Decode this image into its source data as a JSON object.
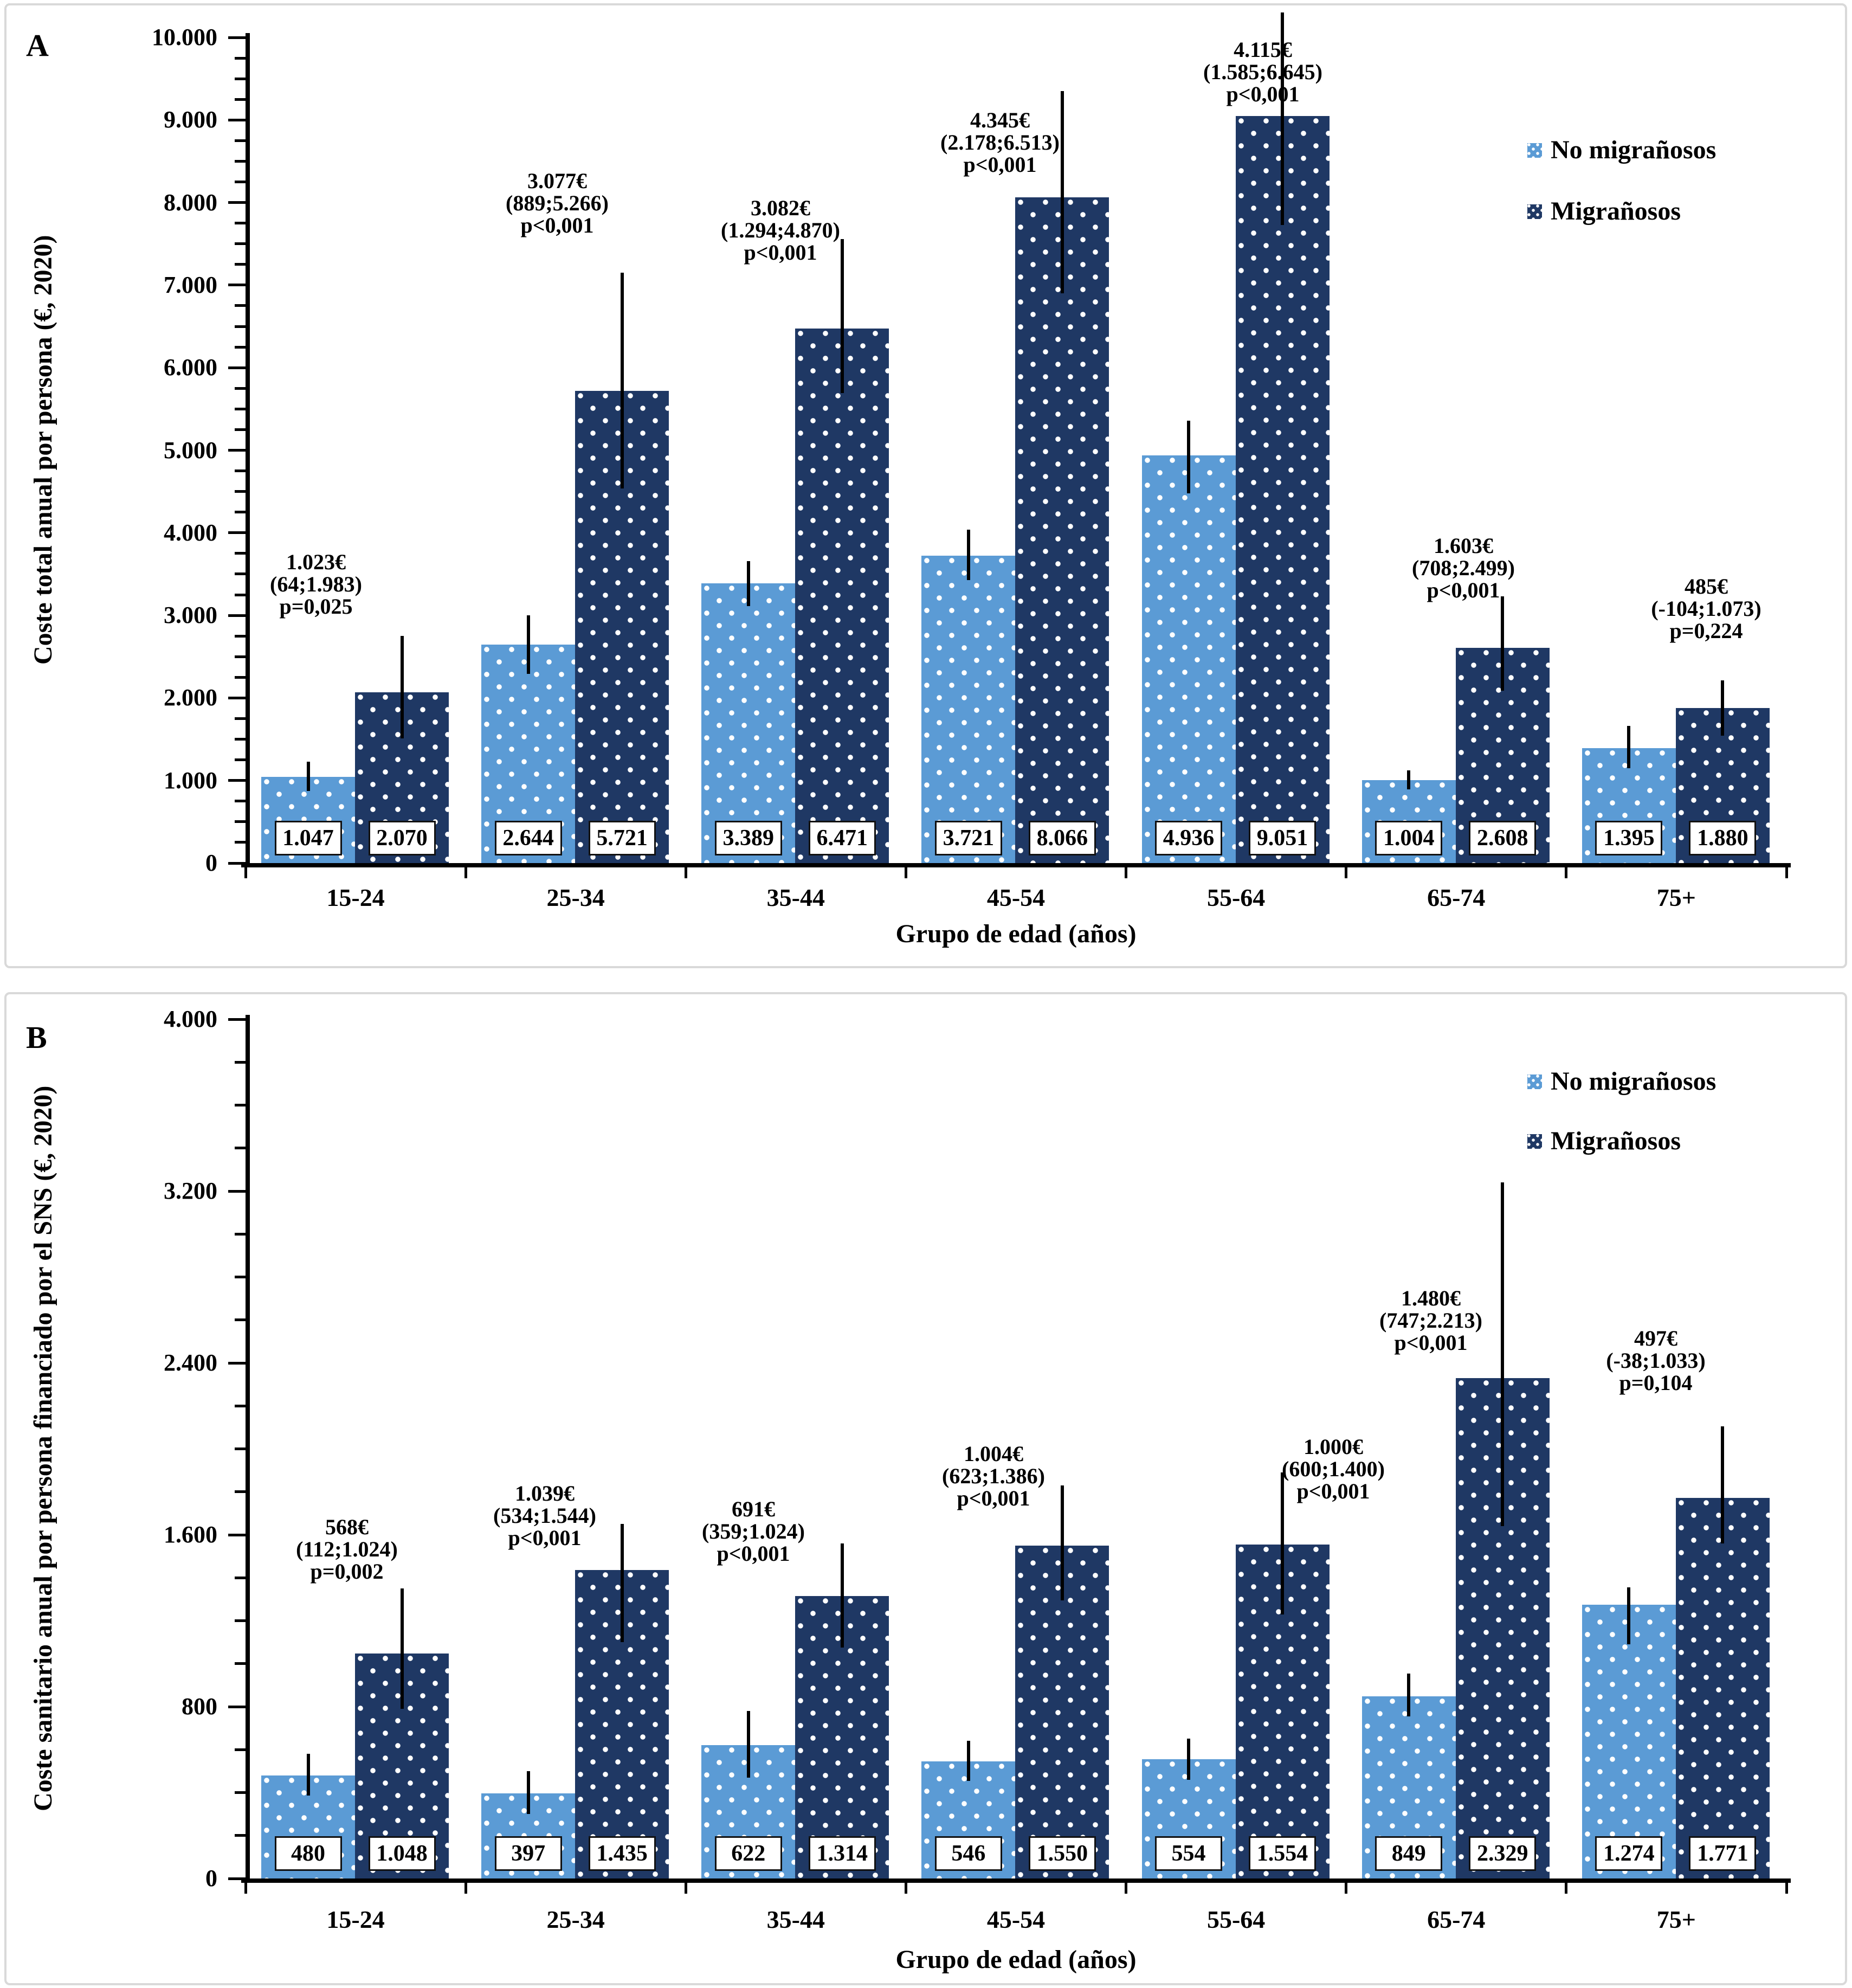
{
  "chart_data": [
    {
      "panel_label": "A",
      "type": "bar",
      "ylabel": "Coste total anual por persona (€, 2020)",
      "xlabel": "Grupo de edad (años)",
      "ylim": [
        0,
        10000
      ],
      "ytick_step": 1000,
      "ytick_minor_step": 250,
      "ytick_labels": [
        "0",
        "1.000",
        "2.000",
        "3.000",
        "4.000",
        "5.000",
        "6.000",
        "7.000",
        "8.000",
        "9.000",
        "10.000"
      ],
      "categories": [
        "15-24",
        "25-34",
        "35-44",
        "45-54",
        "55-64",
        "65-74",
        "75+"
      ],
      "legend": [
        "No migrañosos",
        "Migrañosos"
      ],
      "grid": false,
      "legend_position": "upper-right",
      "series": [
        {
          "name": "No migrañosos",
          "color": "#5b9bd5",
          "values": [
            1047,
            2644,
            3389,
            3721,
            4936,
            1004,
            1395
          ],
          "labels": [
            "1.047",
            "2.644",
            "3.389",
            "3.721",
            "4.936",
            "1.004",
            "1.395"
          ],
          "ci_low": [
            870,
            2290,
            3110,
            3430,
            4480,
            890,
            1150
          ],
          "ci_high": [
            1230,
            3000,
            3660,
            4040,
            5360,
            1120,
            1660
          ]
        },
        {
          "name": "Migrañosos",
          "color": "#1f3864",
          "values": [
            2070,
            5721,
            6471,
            8066,
            9051,
            2608,
            1880
          ],
          "labels": [
            "2.070",
            "5.721",
            "6.471",
            "8.066",
            "9.051",
            "2.608",
            "1.880"
          ],
          "ci_low": [
            1510,
            4540,
            5690,
            6900,
            7730,
            2090,
            1540
          ],
          "ci_high": [
            2750,
            7150,
            7560,
            9350,
            10300,
            3230,
            2210
          ]
        }
      ],
      "annotations": [
        {
          "lines": [
            "1.023€",
            "(64;1.983)",
            "p=0,025"
          ]
        },
        {
          "lines": [
            "3.077€",
            "(889;5.266)",
            "p<0,001"
          ]
        },
        {
          "lines": [
            "3.082€",
            "(1.294;4.870)",
            "p<0,001"
          ]
        },
        {
          "lines": [
            "4.345€",
            "(2.178;6.513)",
            "p<0,001"
          ]
        },
        {
          "lines": [
            "4.115€",
            "(1.585;6.645)",
            "p<0,001"
          ]
        },
        {
          "lines": [
            "1.603€",
            "(708;2.499)",
            "p<0,001"
          ]
        },
        {
          "lines": [
            "485€",
            "(-104;1.073)",
            "p=0,224"
          ]
        }
      ]
    },
    {
      "panel_label": "B",
      "type": "bar",
      "ylabel": "Coste sanitario anual por persona financiado por el SNS (€, 2020)",
      "xlabel": "Grupo de edad (años)",
      "ylim": [
        0,
        4000
      ],
      "ytick_step": 800,
      "ytick_minor_step": 200,
      "ytick_labels": [
        "0",
        "800",
        "1.600",
        "2.400",
        "3.200",
        "4.000"
      ],
      "categories": [
        "15-24",
        "25-34",
        "35-44",
        "45-54",
        "55-64",
        "65-74",
        "75+"
      ],
      "legend": [
        "No migrañosos",
        "Migrañosos"
      ],
      "grid": false,
      "legend_position": "upper-right",
      "series": [
        {
          "name": "No migrañosos",
          "color": "#5b9bd5",
          "values": [
            480,
            397,
            622,
            546,
            554,
            849,
            1274
          ],
          "labels": [
            "480",
            "397",
            "622",
            "546",
            "554",
            "849",
            "1.274"
          ],
          "ci_low": [
            385,
            300,
            470,
            455,
            460,
            755,
            1090
          ],
          "ci_high": [
            580,
            500,
            780,
            640,
            650,
            955,
            1355
          ]
        },
        {
          "name": "Migrañosos",
          "color": "#1f3864",
          "values": [
            1048,
            1435,
            1314,
            1550,
            1554,
            2329,
            1771
          ],
          "labels": [
            "1.048",
            "1.435",
            "1.314",
            "1.550",
            "1.554",
            "2.329",
            "1.771"
          ],
          "ci_low": [
            790,
            1100,
            1075,
            1295,
            1230,
            1640,
            1560
          ],
          "ci_high": [
            1350,
            1650,
            1560,
            1830,
            1890,
            3240,
            2105
          ]
        }
      ],
      "annotations": [
        {
          "lines": [
            "568€",
            "(112;1.024)",
            "p=0,002"
          ]
        },
        {
          "lines": [
            "1.039€",
            "(534;1.544)",
            "p<0,001"
          ]
        },
        {
          "lines": [
            "691€",
            "(359;1.024)",
            "p<0,001"
          ]
        },
        {
          "lines": [
            "1.004€",
            "(623;1.386)",
            "p<0,001"
          ]
        },
        {
          "lines": [
            "1.000€",
            "(600;1.400)",
            "p<0,001"
          ]
        },
        {
          "lines": [
            "1.480€",
            "(747;2.213)",
            "p<0,001"
          ]
        },
        {
          "lines": [
            "497€",
            "(-38;1.033)",
            "p=0,104"
          ]
        }
      ]
    }
  ]
}
